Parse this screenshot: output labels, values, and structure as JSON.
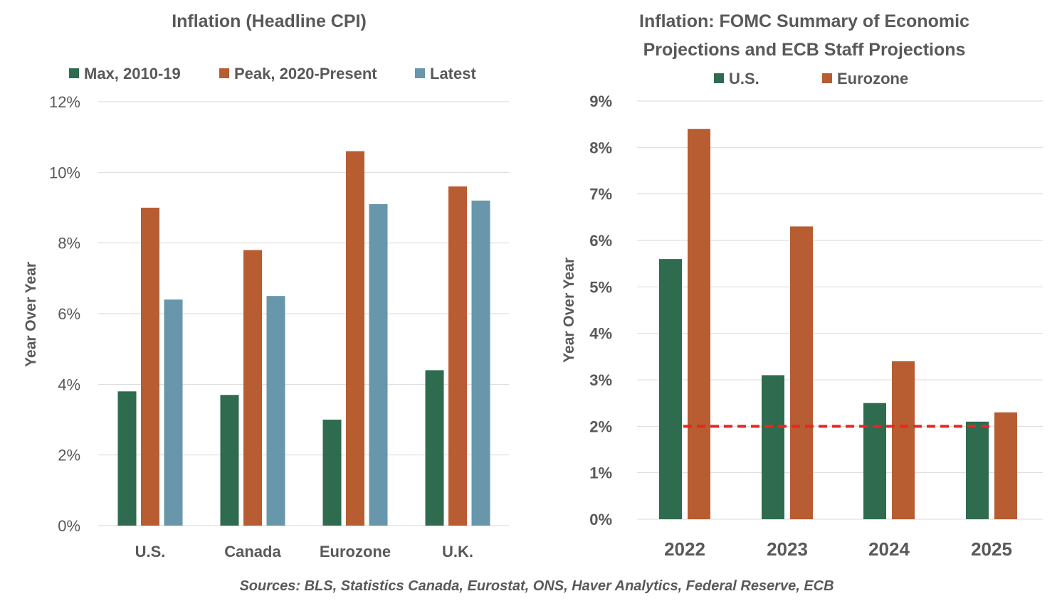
{
  "colors": {
    "green": "#2e6b4f",
    "orange": "#b85c32",
    "blue": "#6896aa",
    "target": "#e8261f",
    "grid": "#d9d9d9"
  },
  "chart_data": [
    {
      "type": "bar",
      "title": "Inflation (Headline CPI)",
      "ylabel": "Year Over Year",
      "xlabel": "",
      "ylim": [
        0,
        12
      ],
      "yticks": [
        "0%",
        "2%",
        "4%",
        "6%",
        "8%",
        "10%",
        "12%"
      ],
      "ytick_values": [
        0,
        2,
        4,
        6,
        8,
        10,
        12
      ],
      "categories": [
        "U.S.",
        "Canada",
        "Eurozone",
        "U.K."
      ],
      "legend_position": "top",
      "series": [
        {
          "name": "Max, 2010-19",
          "color_key": "green",
          "values": [
            3.8,
            3.7,
            3.0,
            4.4
          ]
        },
        {
          "name": "Peak, 2020-Present",
          "color_key": "orange",
          "values": [
            9.0,
            7.8,
            10.6,
            9.6
          ]
        },
        {
          "name": "Latest",
          "color_key": "blue",
          "values": [
            6.4,
            6.5,
            9.1,
            9.2
          ]
        }
      ]
    },
    {
      "type": "bar",
      "title_lines": [
        "Inflation: FOMC Summary of Economic",
        "Projections and ECB Staff Projections"
      ],
      "ylabel": "Year Over Year",
      "xlabel": "",
      "ylim": [
        0,
        9
      ],
      "yticks": [
        "0%",
        "1%",
        "2%",
        "3%",
        "4%",
        "5%",
        "6%",
        "7%",
        "8%",
        "9%"
      ],
      "ytick_values": [
        0,
        1,
        2,
        3,
        4,
        5,
        6,
        7,
        8,
        9
      ],
      "categories": [
        "2022",
        "2023",
        "2024",
        "2025"
      ],
      "legend_position": "top",
      "series": [
        {
          "name": "U.S.",
          "color_key": "green",
          "values": [
            5.6,
            3.1,
            2.5,
            2.1
          ]
        },
        {
          "name": "Eurozone",
          "color_key": "orange",
          "values": [
            8.4,
            6.3,
            3.4,
            2.3
          ]
        }
      ],
      "reference_line": {
        "value": 2,
        "style": "dashed"
      }
    }
  ],
  "source": "Sources: BLS, Statistics Canada, Eurostat, ONS, Haver Analytics, Federal Reserve, ECB"
}
